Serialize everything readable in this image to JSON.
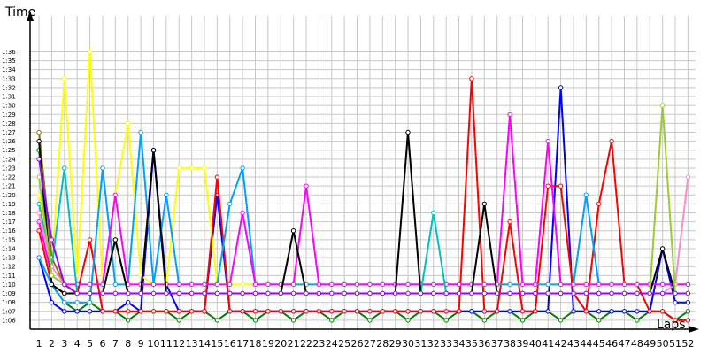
{
  "chart_data": {
    "type": "line",
    "title": "",
    "xlabel": "Laps",
    "ylabel": "Time",
    "y_unit": "m:ss",
    "x": [
      1,
      2,
      3,
      4,
      5,
      6,
      7,
      8,
      9,
      10,
      11,
      12,
      13,
      14,
      15,
      16,
      17,
      18,
      19,
      20,
      21,
      22,
      23,
      24,
      25,
      26,
      27,
      28,
      29,
      30,
      31,
      32,
      33,
      34,
      35,
      36,
      37,
      38,
      39,
      40,
      41,
      42,
      43,
      44,
      45,
      46,
      47,
      48,
      49,
      50,
      51,
      52
    ],
    "x_ticks": [
      1,
      2,
      3,
      4,
      5,
      6,
      7,
      8,
      9,
      10,
      11,
      12,
      13,
      14,
      15,
      16,
      17,
      18,
      19,
      20,
      21,
      22,
      23,
      24,
      25,
      26,
      27,
      28,
      29,
      30,
      31,
      32,
      33,
      34,
      35,
      36,
      37,
      38,
      39,
      40,
      41,
      42,
      43,
      44,
      45,
      46,
      47,
      48,
      49,
      50,
      51,
      52
    ],
    "y_ticks": [
      "1:06",
      "1:07",
      "1:08",
      "1:09",
      "1:10",
      "1:11",
      "1:12",
      "1:13",
      "1:14",
      "1:15",
      "1:16",
      "1:17",
      "1:18",
      "1:19",
      "1:20",
      "1:21",
      "1:22",
      "1:23",
      "1:24",
      "1:25",
      "1:26",
      "1:27",
      "1:28",
      "1:29",
      "1:30",
      "1:31",
      "1:32",
      "1:33",
      "1:34",
      "1:35",
      "1:36"
    ],
    "ylim_seconds": [
      65,
      100
    ],
    "xlim": [
      0.3,
      52.6
    ],
    "grid": true,
    "legend": "none",
    "series": [
      {
        "color": "#008000",
        "values": [
          85,
          70,
          68,
          67,
          68,
          67,
          67,
          66,
          67,
          67,
          67,
          66,
          67,
          67,
          66,
          67,
          67,
          66,
          67,
          67,
          66,
          67,
          67,
          66,
          67,
          67,
          66,
          67,
          67,
          66,
          67,
          67,
          66,
          67,
          67,
          66,
          67,
          67,
          66,
          67,
          67,
          66,
          67,
          67,
          66,
          67,
          67,
          66,
          67,
          67,
          66,
          67
        ]
      },
      {
        "color": "#0000ff",
        "values": [
          73,
          68,
          67,
          67,
          67,
          67,
          67,
          68,
          67,
          85,
          70,
          67,
          67,
          67,
          80,
          67,
          67,
          67,
          67,
          67,
          67,
          67,
          67,
          67,
          67,
          67,
          67,
          67,
          67,
          67,
          67,
          67,
          67,
          67,
          67,
          67,
          67,
          67,
          67,
          67,
          67,
          92,
          67,
          67,
          67,
          67,
          67,
          67,
          67,
          74,
          68,
          68
        ]
      },
      {
        "color": "#ff0000",
        "values": [
          76,
          70,
          69,
          69,
          75,
          67,
          67,
          67,
          67,
          67,
          67,
          67,
          67,
          67,
          82,
          67,
          67,
          67,
          67,
          67,
          67,
          67,
          67,
          67,
          67,
          67,
          67,
          67,
          67,
          67,
          67,
          67,
          67,
          67,
          93,
          67,
          67,
          77,
          67,
          67,
          81,
          81,
          69,
          67,
          79,
          86,
          70,
          70,
          67,
          67,
          66,
          66
        ]
      },
      {
        "color": "#ffff00",
        "values": [
          80,
          72,
          93,
          71,
          96,
          70,
          80,
          88,
          71,
          70,
          70,
          83,
          83,
          83,
          70,
          70,
          70,
          70,
          70,
          70,
          70,
          70,
          70,
          70,
          70,
          70,
          70,
          70,
          70,
          70,
          70,
          70,
          70,
          70,
          70,
          70,
          70,
          70,
          70,
          70,
          70,
          70,
          70,
          70,
          70,
          70,
          70,
          70,
          70,
          70,
          70,
          70
        ]
      },
      {
        "color": "#00a0ff",
        "values": [
          73,
          70,
          68,
          68,
          68,
          83,
          70,
          70,
          87,
          70,
          80,
          70,
          70,
          70,
          70,
          79,
          83,
          70,
          70,
          70,
          70,
          70,
          70,
          70,
          70,
          70,
          70,
          70,
          70,
          70,
          70,
          70,
          70,
          70,
          70,
          70,
          70,
          70,
          70,
          70,
          70,
          70,
          70,
          80,
          70,
          70,
          70,
          70,
          70,
          70,
          70,
          70
        ]
      },
      {
        "color": "#ff00ff",
        "values": [
          77,
          71,
          70,
          70,
          70,
          70,
          80,
          70,
          70,
          70,
          70,
          70,
          70,
          70,
          70,
          70,
          78,
          70,
          70,
          70,
          70,
          81,
          70,
          70,
          70,
          70,
          70,
          70,
          70,
          70,
          70,
          70,
          70,
          70,
          70,
          70,
          70,
          89,
          70,
          70,
          86,
          70,
          70,
          70,
          70,
          70,
          70,
          70,
          70,
          70,
          70,
          70
        ]
      },
      {
        "color": "#808000",
        "values": [
          87,
          73,
          70,
          69,
          69,
          69,
          75,
          69,
          69,
          69,
          69,
          69,
          69,
          69,
          69,
          69,
          69,
          69,
          69,
          69,
          69,
          69,
          69,
          69,
          69,
          69,
          69,
          69,
          69,
          69,
          69,
          69,
          69,
          69,
          69,
          69,
          69,
          69,
          69,
          69,
          69,
          69,
          69,
          69,
          69,
          69,
          69,
          69,
          69,
          69,
          69,
          69
        ]
      },
      {
        "color": "#00c0c0",
        "values": [
          79,
          72,
          83,
          69,
          69,
          69,
          69,
          69,
          69,
          69,
          69,
          69,
          69,
          69,
          69,
          69,
          69,
          69,
          69,
          69,
          69,
          69,
          69,
          69,
          69,
          69,
          69,
          69,
          69,
          69,
          69,
          78,
          69,
          69,
          69,
          69,
          69,
          69,
          69,
          69,
          69,
          69,
          69,
          69,
          69,
          69,
          69,
          69,
          69,
          69,
          69,
          69
        ]
      },
      {
        "color": "#ff8cc8",
        "values": [
          78,
          72,
          70,
          69,
          69,
          69,
          69,
          69,
          69,
          69,
          69,
          69,
          69,
          69,
          69,
          69,
          69,
          69,
          69,
          69,
          69,
          69,
          69,
          69,
          69,
          69,
          69,
          69,
          69,
          69,
          69,
          69,
          69,
          69,
          69,
          69,
          69,
          69,
          69,
          69,
          69,
          69,
          69,
          69,
          69,
          69,
          69,
          69,
          69,
          69,
          70,
          82
        ]
      },
      {
        "color": "#000000",
        "values": [
          86,
          70,
          69,
          69,
          69,
          69,
          75,
          69,
          69,
          85,
          69,
          69,
          69,
          69,
          69,
          69,
          69,
          69,
          69,
          69,
          76,
          69,
          69,
          69,
          69,
          69,
          69,
          69,
          69,
          87,
          69,
          69,
          69,
          69,
          69,
          79,
          69,
          69,
          69,
          69,
          69,
          69,
          69,
          69,
          69,
          69,
          69,
          69,
          69,
          74,
          69,
          69
        ]
      },
      {
        "color": "#9acd32",
        "values": [
          82,
          71,
          70,
          69,
          69,
          69,
          69,
          69,
          69,
          69,
          69,
          69,
          69,
          69,
          69,
          69,
          69,
          69,
          69,
          69,
          69,
          69,
          69,
          69,
          69,
          69,
          69,
          69,
          69,
          69,
          69,
          69,
          69,
          69,
          69,
          69,
          69,
          69,
          69,
          69,
          69,
          69,
          69,
          69,
          69,
          69,
          69,
          69,
          69,
          90,
          69,
          69
        ]
      },
      {
        "color": "#a000ff",
        "values": [
          84,
          75,
          70,
          69,
          69,
          69,
          69,
          69,
          69,
          69,
          69,
          69,
          69,
          69,
          69,
          69,
          69,
          69,
          69,
          69,
          69,
          69,
          69,
          69,
          69,
          69,
          69,
          69,
          69,
          69,
          69,
          69,
          69,
          69,
          69,
          69,
          69,
          69,
          69,
          69,
          69,
          69,
          69,
          69,
          69,
          69,
          69,
          69,
          69,
          69,
          69,
          69
        ]
      }
    ]
  }
}
